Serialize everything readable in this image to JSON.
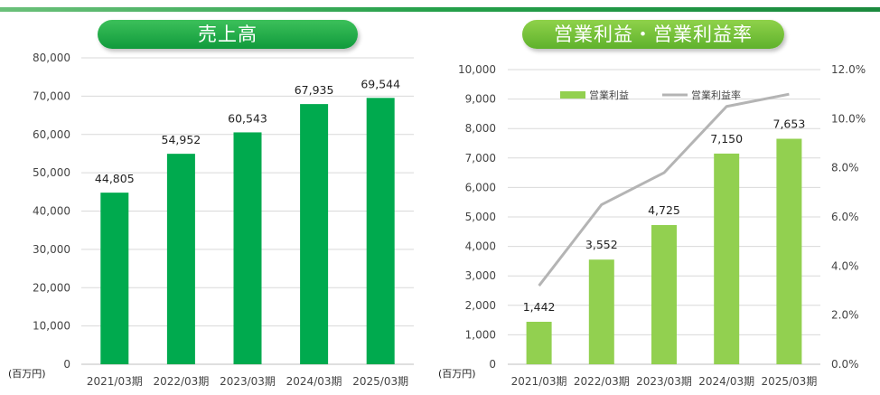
{
  "unit_label": "(百万円)",
  "chart_data": [
    {
      "type": "bar",
      "title": "売上高",
      "categories": [
        "2021/03期",
        "2022/03期",
        "2023/03期",
        "2024/03期",
        "2025/03期"
      ],
      "values": [
        44805,
        54952,
        60543,
        67935,
        69544
      ],
      "value_labels": [
        "44,805",
        "54,952",
        "60,543",
        "67,935",
        "69,544"
      ],
      "ylim": [
        0,
        80000
      ],
      "y_ticks": [
        "0",
        "10,000",
        "20,000",
        "30,000",
        "40,000",
        "50,000",
        "60,000",
        "70,000",
        "80,000"
      ],
      "grid": true,
      "bar_color": "#00aa4e"
    },
    {
      "type": "bar+line",
      "title": "営業利益・営業利益率",
      "categories": [
        "2021/03期",
        "2022/03期",
        "2023/03期",
        "2024/03期",
        "2025/03期"
      ],
      "series": [
        {
          "name": "営業利益",
          "type": "bar",
          "axis": "left",
          "values": [
            1442,
            3552,
            4725,
            7150,
            7653
          ],
          "value_labels": [
            "1,442",
            "3,552",
            "4,725",
            "7,150",
            "7,653"
          ],
          "color": "#92d050"
        },
        {
          "name": "営業利益率",
          "type": "line",
          "axis": "right",
          "values": [
            3.2,
            6.5,
            7.8,
            10.5,
            11.0
          ],
          "color": "#b4b4b4"
        }
      ],
      "ylim": [
        0,
        10000
      ],
      "y_ticks": [
        "0",
        "1,000",
        "2,000",
        "3,000",
        "4,000",
        "5,000",
        "6,000",
        "7,000",
        "8,000",
        "9,000",
        "10,000"
      ],
      "y2lim": [
        0,
        12
      ],
      "y2_ticks": [
        "0.0%",
        "2.0%",
        "4.0%",
        "6.0%",
        "8.0%",
        "10.0%",
        "12.0%"
      ],
      "legend_position": "top",
      "grid": true
    }
  ]
}
